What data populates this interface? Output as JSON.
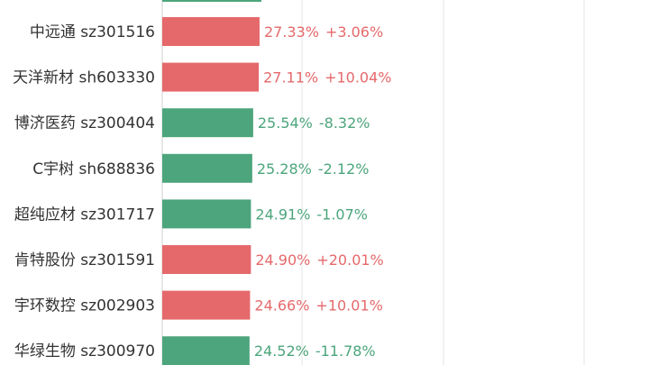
{
  "colors": {
    "up": "#e5696b",
    "down": "#4ca57c",
    "grid": "#e6e6e6",
    "text": "#333333"
  },
  "chart_data": {
    "type": "bar",
    "orientation": "horizontal",
    "grid": true,
    "xlim": [
      0,
      100
    ],
    "categories": [
      "中远通  sz301516",
      "天洋新材  sh603330",
      "博济医药  sz300404",
      "C宇树  sh688836",
      "超纯应材  sz301717",
      "肯特股份  sz301591",
      "宇环数控  sz002903",
      "华绿生物  sz300970"
    ],
    "values": [
      27.33,
      27.11,
      25.54,
      25.28,
      24.91,
      24.9,
      24.66,
      24.52
    ],
    "value_labels": [
      "27.33%",
      "27.11%",
      "25.54%",
      "25.28%",
      "24.91%",
      "24.90%",
      "24.66%",
      "24.52%"
    ],
    "change_labels": [
      "+3.06%",
      "+10.04%",
      "-8.32%",
      "-2.12%",
      "-1.07%",
      "+20.01%",
      "+10.01%",
      "-11.78%"
    ],
    "direction": [
      "up",
      "up",
      "down",
      "down",
      "down",
      "up",
      "up",
      "down"
    ]
  }
}
